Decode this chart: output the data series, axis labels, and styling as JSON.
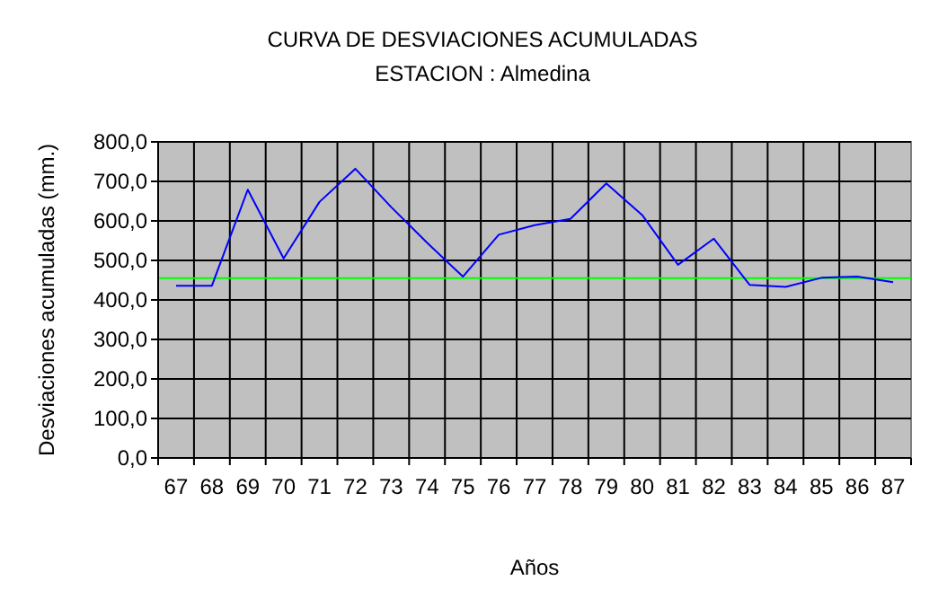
{
  "chart_data": {
    "type": "line",
    "title": "CURVA DE DESVIACIONES ACUMULADAS",
    "subtitle": "ESTACION : Almedina",
    "xlabel": "Años",
    "ylabel": "Desviaciones acumuladas (mm.)",
    "categories": [
      "67",
      "68",
      "69",
      "70",
      "71",
      "72",
      "73",
      "74",
      "75",
      "76",
      "77",
      "78",
      "79",
      "80",
      "81",
      "82",
      "83",
      "84",
      "85",
      "86",
      "87"
    ],
    "series": [
      {
        "color": "#0000ff",
        "values": [
          436,
          436,
          679,
          505,
          648,
          732,
          635,
          545,
          459,
          565,
          589,
          605,
          695,
          615,
          489,
          555,
          438,
          433,
          456,
          459,
          445
        ]
      }
    ],
    "ylim": [
      0,
      800
    ],
    "yticks": [
      {
        "value": 0,
        "label": "0,0"
      },
      {
        "value": 100,
        "label": "100,0"
      },
      {
        "value": 200,
        "label": "200,0"
      },
      {
        "value": 300,
        "label": "300,0"
      },
      {
        "value": 400,
        "label": "400,0"
      },
      {
        "value": 500,
        "label": "500,0"
      },
      {
        "value": 600,
        "label": "600,0"
      },
      {
        "value": 700,
        "label": "700,0"
      },
      {
        "value": 800,
        "label": "800,0"
      }
    ],
    "ref_lines": [
      {
        "axis": "y",
        "value": 455,
        "color": "#00ff00"
      }
    ],
    "grid": true,
    "marker": "none",
    "line_style": "solid"
  }
}
